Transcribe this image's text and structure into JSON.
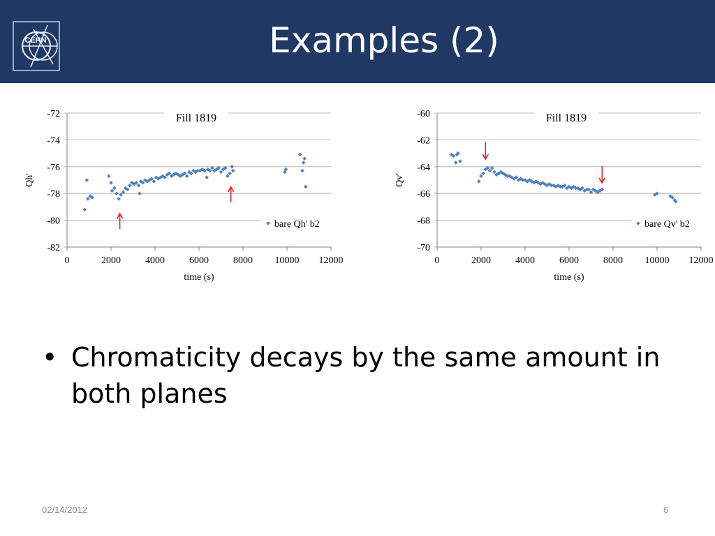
{
  "slide": {
    "title": "Examples (2)",
    "logo_text": "CERN",
    "bullets": [
      "Chromaticity decays by the same amount in both planes"
    ],
    "footer_date": "02/14/2012",
    "page_number": "6"
  },
  "colors": {
    "header_bg": "#1f3864",
    "series": "#4f81bd",
    "arrow": "#e8201c"
  },
  "chart_data": [
    {
      "type": "scatter",
      "title": "Fill 1819",
      "xlabel": "time (s)",
      "ylabel": "Qh'",
      "xlim": [
        0,
        12000
      ],
      "ylim": [
        -82,
        -72
      ],
      "xticks": [
        "0",
        "2000",
        "4000",
        "6000",
        "8000",
        "10000",
        "12000"
      ],
      "yticks": [
        "-72",
        "-74",
        "-76",
        "-78",
        "-80",
        "-82"
      ],
      "legend": "bare Qh' b2",
      "legend_position": "bottom-right",
      "grid": "horizontal",
      "arrows": [
        {
          "x": 2400,
          "direction": "up"
        },
        {
          "x": 7450,
          "direction": "up"
        }
      ],
      "series": [
        {
          "name": "bare Qh' b2",
          "points": [
            [
              800,
              -79.2
            ],
            [
              900,
              -77.0
            ],
            [
              950,
              -78.4
            ],
            [
              1050,
              -78.2
            ],
            [
              1150,
              -78.3
            ],
            [
              1900,
              -76.7
            ],
            [
              2000,
              -77.2
            ],
            [
              2050,
              -77.8
            ],
            [
              2150,
              -77.6
            ],
            [
              2250,
              -78.0
            ],
            [
              2350,
              -78.4
            ],
            [
              2450,
              -78.1
            ],
            [
              2550,
              -77.9
            ],
            [
              2650,
              -77.6
            ],
            [
              2750,
              -77.7
            ],
            [
              2850,
              -77.4
            ],
            [
              2950,
              -77.2
            ],
            [
              3050,
              -77.3
            ],
            [
              3150,
              -77.2
            ],
            [
              3250,
              -77.4
            ],
            [
              3300,
              -78.0
            ],
            [
              3350,
              -77.1
            ],
            [
              3450,
              -77.2
            ],
            [
              3550,
              -77.0
            ],
            [
              3650,
              -77.1
            ],
            [
              3750,
              -77.0
            ],
            [
              3850,
              -76.9
            ],
            [
              3950,
              -77.1
            ],
            [
              4050,
              -76.8
            ],
            [
              4150,
              -76.9
            ],
            [
              4250,
              -76.8
            ],
            [
              4350,
              -76.7
            ],
            [
              4450,
              -76.8
            ],
            [
              4550,
              -76.6
            ],
            [
              4650,
              -76.5
            ],
            [
              4750,
              -76.7
            ],
            [
              4850,
              -76.6
            ],
            [
              4950,
              -76.5
            ],
            [
              5050,
              -76.6
            ],
            [
              5150,
              -76.7
            ],
            [
              5250,
              -76.6
            ],
            [
              5350,
              -76.5
            ],
            [
              5450,
              -76.7
            ],
            [
              5550,
              -76.4
            ],
            [
              5650,
              -76.5
            ],
            [
              5750,
              -76.3
            ],
            [
              5850,
              -76.4
            ],
            [
              5950,
              -76.3
            ],
            [
              6050,
              -76.3
            ],
            [
              6150,
              -76.2
            ],
            [
              6250,
              -76.3
            ],
            [
              6350,
              -76.8
            ],
            [
              6400,
              -76.2
            ],
            [
              6500,
              -76.3
            ],
            [
              6600,
              -76.1
            ],
            [
              6700,
              -76.3
            ],
            [
              6800,
              -76.2
            ],
            [
              6900,
              -76.1
            ],
            [
              7000,
              -76.4
            ],
            [
              7100,
              -76.2
            ],
            [
              7200,
              -76.1
            ],
            [
              7300,
              -76.7
            ],
            [
              7400,
              -76.5
            ],
            [
              7500,
              -76.0
            ],
            [
              7550,
              -76.3
            ],
            [
              9900,
              -76.4
            ],
            [
              9950,
              -76.2
            ],
            [
              10600,
              -75.1
            ],
            [
              10700,
              -76.3
            ],
            [
              10750,
              -75.7
            ],
            [
              10800,
              -75.4
            ],
            [
              10850,
              -77.5
            ]
          ]
        }
      ]
    },
    {
      "type": "scatter",
      "title": "Fill 1819",
      "xlabel": "time (s)",
      "ylabel": "Qv'",
      "xlim": [
        0,
        12000
      ],
      "ylim": [
        -70,
        -60
      ],
      "xticks": [
        "0",
        "2000",
        "4000",
        "6000",
        "8000",
        "10000",
        "12000"
      ],
      "yticks": [
        "-60",
        "-62",
        "-64",
        "-66",
        "-68",
        "-70"
      ],
      "legend": "bare Qv' b2",
      "legend_position": "bottom-right",
      "grid": "horizontal",
      "arrows": [
        {
          "x": 2200,
          "direction": "down"
        },
        {
          "x": 7500,
          "direction": "down"
        }
      ],
      "series": [
        {
          "name": "bare Qv' b2",
          "points": [
            [
              650,
              -63.1
            ],
            [
              750,
              -63.2
            ],
            [
              850,
              -63.7
            ],
            [
              900,
              -63.1
            ],
            [
              950,
              -63.0
            ],
            [
              1050,
              -63.6
            ],
            [
              1900,
              -65.1
            ],
            [
              2000,
              -64.7
            ],
            [
              2100,
              -64.5
            ],
            [
              2200,
              -64.2
            ],
            [
              2300,
              -64.1
            ],
            [
              2400,
              -64.3
            ],
            [
              2500,
              -64.1
            ],
            [
              2600,
              -64.4
            ],
            [
              2700,
              -64.6
            ],
            [
              2800,
              -64.5
            ],
            [
              2900,
              -64.4
            ],
            [
              3000,
              -64.5
            ],
            [
              3100,
              -64.6
            ],
            [
              3200,
              -64.7
            ],
            [
              3300,
              -64.7
            ],
            [
              3400,
              -64.8
            ],
            [
              3500,
              -64.9
            ],
            [
              3600,
              -64.8
            ],
            [
              3700,
              -65.0
            ],
            [
              3800,
              -64.9
            ],
            [
              3900,
              -65.0
            ],
            [
              4000,
              -65.0
            ],
            [
              4100,
              -65.1
            ],
            [
              4200,
              -65.0
            ],
            [
              4300,
              -65.1
            ],
            [
              4400,
              -65.2
            ],
            [
              4500,
              -65.1
            ],
            [
              4600,
              -65.2
            ],
            [
              4700,
              -65.3
            ],
            [
              4800,
              -65.2
            ],
            [
              4900,
              -65.3
            ],
            [
              5000,
              -65.4
            ],
            [
              5100,
              -65.3
            ],
            [
              5200,
              -65.4
            ],
            [
              5300,
              -65.4
            ],
            [
              5400,
              -65.5
            ],
            [
              5500,
              -65.4
            ],
            [
              5600,
              -65.5
            ],
            [
              5700,
              -65.5
            ],
            [
              5800,
              -65.4
            ],
            [
              5900,
              -65.6
            ],
            [
              6000,
              -65.5
            ],
            [
              6100,
              -65.6
            ],
            [
              6200,
              -65.5
            ],
            [
              6300,
              -65.6
            ],
            [
              6400,
              -65.6
            ],
            [
              6500,
              -65.7
            ],
            [
              6600,
              -65.6
            ],
            [
              6700,
              -65.8
            ],
            [
              6800,
              -65.7
            ],
            [
              6900,
              -65.7
            ],
            [
              7000,
              -65.9
            ],
            [
              7100,
              -65.7
            ],
            [
              7200,
              -65.8
            ],
            [
              7300,
              -65.9
            ],
            [
              7400,
              -65.8
            ],
            [
              7500,
              -65.7
            ],
            [
              9900,
              -66.1
            ],
            [
              10000,
              -66.0
            ],
            [
              10600,
              -66.2
            ],
            [
              10700,
              -66.3
            ],
            [
              10800,
              -66.5
            ],
            [
              10850,
              -66.6
            ]
          ]
        }
      ]
    }
  ]
}
